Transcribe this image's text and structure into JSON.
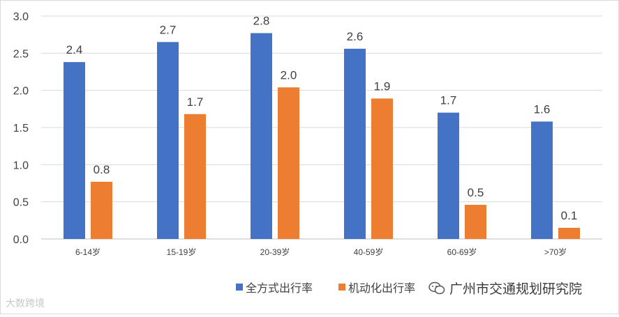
{
  "chart_data": {
    "type": "bar",
    "categories": [
      "6-14岁",
      "15-19岁",
      "20-39岁",
      "40-59岁",
      "60-69岁",
      ">70岁"
    ],
    "series": [
      {
        "name": "全方式出行率",
        "values": [
          2.4,
          2.7,
          2.8,
          2.6,
          1.7,
          1.6
        ],
        "color": "#4472C4"
      },
      {
        "name": "机动化出行率",
        "values": [
          0.8,
          1.7,
          2.0,
          1.9,
          0.5,
          0.1
        ],
        "color": "#ED7D31"
      }
    ],
    "bar_heights": [
      [
        2.38,
        2.65,
        2.77,
        2.56,
        1.7,
        1.58
      ],
      [
        0.77,
        1.68,
        2.04,
        1.89,
        0.46,
        0.15
      ]
    ],
    "ylim": [
      0,
      3.0
    ],
    "yticks": [
      "0.0",
      "0.5",
      "1.0",
      "1.5",
      "2.0",
      "2.5",
      "3.0"
    ],
    "grid": true,
    "legend_position": "bottom-right",
    "title": "",
    "xlabel": "",
    "ylabel": ""
  },
  "watermarks": {
    "left_text": "大数跨境",
    "right_text": "广州市交通规划研究院"
  }
}
